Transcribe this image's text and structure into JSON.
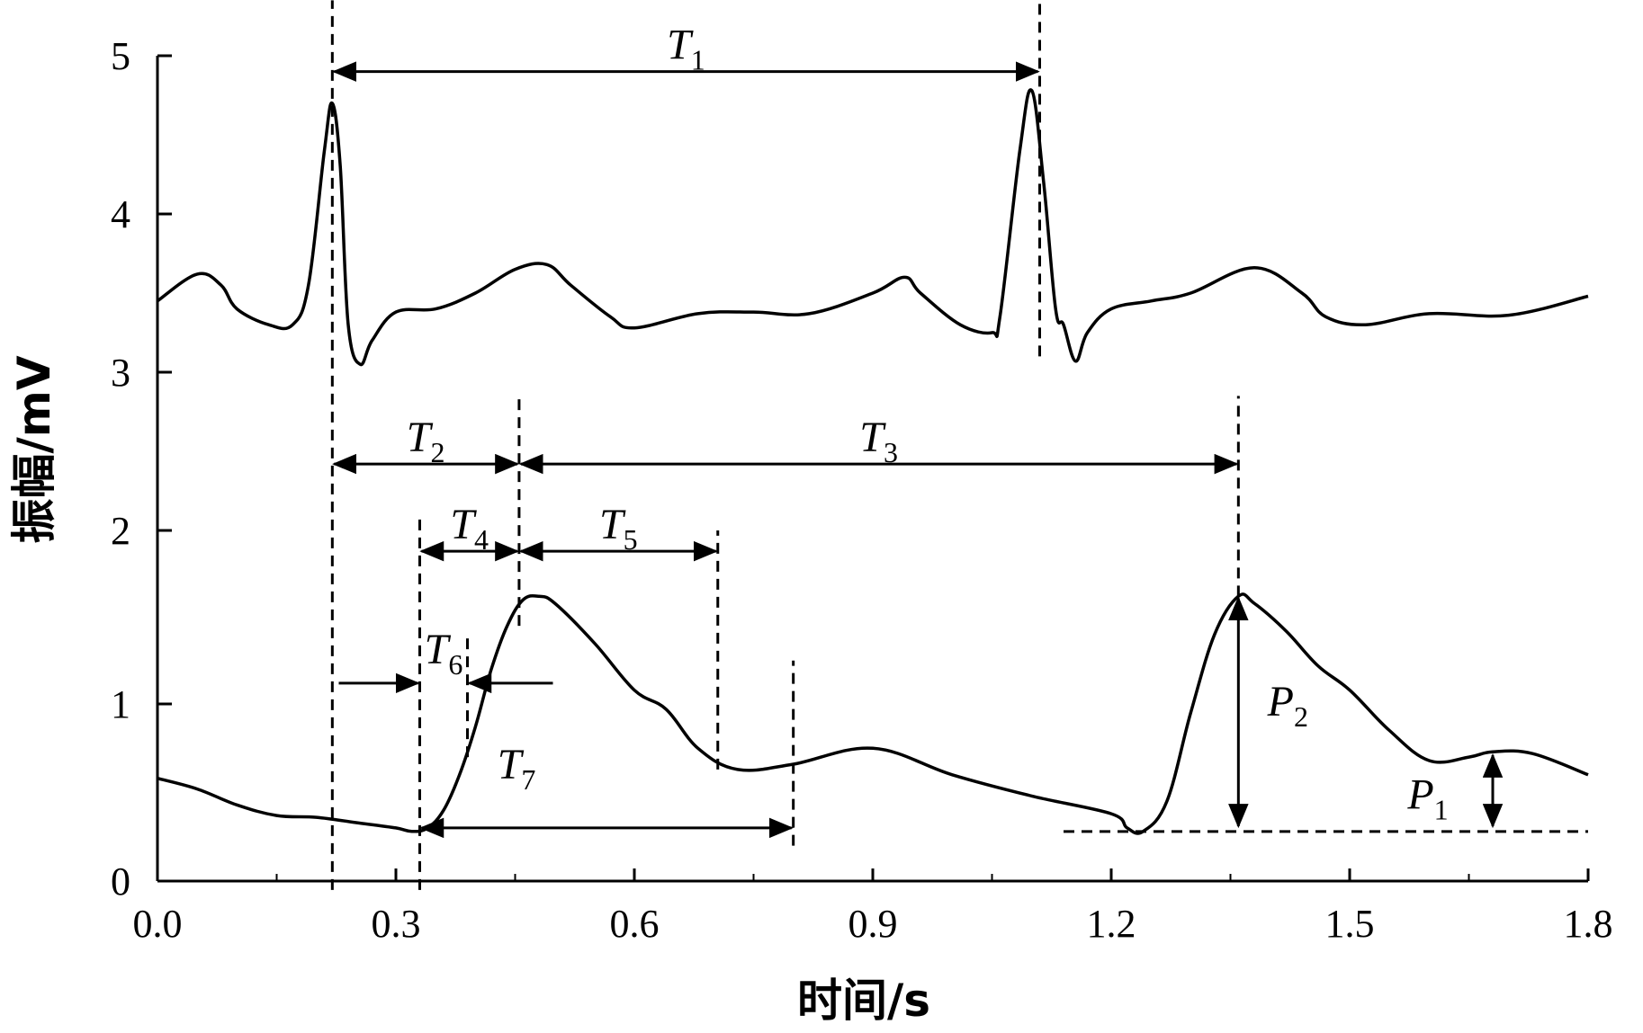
{
  "chart_data": {
    "type": "line",
    "xlabel": "时间/s",
    "ylabel": "振幅/mV",
    "xlim": [
      0,
      1.8
    ],
    "ylim": [
      0,
      5
    ],
    "x_ticks": [
      "0.0",
      "0.3",
      "0.6",
      "0.9",
      "1.2",
      "1.5",
      "1.8"
    ],
    "y_ticks": [
      "0",
      "1",
      "2",
      "3",
      "4",
      "5"
    ],
    "y_scale_note": "y-axis segment between 1 and 2 is drawn compressed",
    "grid": false,
    "series": [
      {
        "x": [
          0.0,
          0.05,
          0.08,
          0.1,
          0.14,
          0.17,
          0.19,
          0.21,
          0.22,
          0.23,
          0.24,
          0.255,
          0.27,
          0.3,
          0.35,
          0.4,
          0.45,
          0.49,
          0.52,
          0.57,
          0.6,
          0.68,
          0.75,
          0.82,
          0.9,
          0.94,
          0.96,
          1.01,
          1.05,
          1.06,
          1.085,
          1.1,
          1.115,
          1.13,
          1.14,
          1.155,
          1.17,
          1.2,
          1.25,
          1.3,
          1.38,
          1.44,
          1.47,
          1.52,
          1.6,
          1.7,
          1.8
        ],
        "y": [
          3.45,
          3.62,
          3.55,
          3.4,
          3.3,
          3.3,
          3.55,
          4.4,
          4.7,
          4.3,
          3.3,
          3.05,
          3.2,
          3.38,
          3.4,
          3.5,
          3.65,
          3.68,
          3.55,
          3.35,
          3.28,
          3.37,
          3.38,
          3.37,
          3.5,
          3.6,
          3.5,
          3.3,
          3.25,
          3.35,
          4.4,
          4.78,
          4.2,
          3.4,
          3.3,
          3.07,
          3.25,
          3.4,
          3.45,
          3.5,
          3.66,
          3.5,
          3.35,
          3.3,
          3.37,
          3.36,
          3.48
        ]
      },
      {
        "x": [
          0.0,
          0.05,
          0.1,
          0.15,
          0.2,
          0.25,
          0.3,
          0.32,
          0.34,
          0.36,
          0.38,
          0.4,
          0.42,
          0.44,
          0.46,
          0.48,
          0.5,
          0.55,
          0.6,
          0.64,
          0.68,
          0.73,
          0.8,
          0.9,
          1.0,
          1.1,
          1.2,
          1.22,
          1.24,
          1.27,
          1.3,
          1.33,
          1.36,
          1.38,
          1.42,
          1.46,
          1.5,
          1.55,
          1.6,
          1.65,
          1.68,
          1.73,
          1.8
        ],
        "y": [
          0.58,
          0.52,
          0.43,
          0.37,
          0.36,
          0.33,
          0.3,
          0.28,
          0.3,
          0.4,
          0.6,
          0.87,
          1.2,
          1.45,
          1.6,
          1.62,
          1.58,
          1.35,
          1.08,
          0.97,
          0.75,
          0.63,
          0.66,
          0.75,
          0.6,
          0.48,
          0.38,
          0.3,
          0.28,
          0.45,
          0.95,
          1.4,
          1.62,
          1.58,
          1.42,
          1.22,
          1.08,
          0.85,
          0.68,
          0.7,
          0.73,
          0.72,
          0.6
        ]
      }
    ],
    "annotations": [
      {
        "label": "T",
        "sub": "1",
        "kind": "h-arrow",
        "x1": 0.22,
        "x2": 1.11,
        "y": 4.9
      },
      {
        "label": "T",
        "sub": "2",
        "kind": "h-arrow",
        "x1": 0.22,
        "x2": 0.455,
        "y": 2.42
      },
      {
        "label": "T",
        "sub": "3",
        "kind": "h-arrow",
        "x1": 0.455,
        "x2": 1.36,
        "y": 2.42
      },
      {
        "label": "T",
        "sub": "4",
        "kind": "h-arrow",
        "x1": 0.33,
        "x2": 0.455,
        "y": 1.88
      },
      {
        "label": "T",
        "sub": "5",
        "kind": "h-arrow",
        "x1": 0.455,
        "x2": 0.705,
        "y": 1.88
      },
      {
        "label": "T",
        "sub": "6",
        "kind": "h-inward-arrows",
        "x1": 0.33,
        "x2": 0.39,
        "y": 1.12
      },
      {
        "label": "T",
        "sub": "7",
        "kind": "h-arrow",
        "x1": 0.33,
        "x2": 0.8,
        "y": 0.3
      },
      {
        "label": "P",
        "sub": "1",
        "kind": "v-arrow",
        "x": 1.68,
        "y1": 0.3,
        "y2": 0.72
      },
      {
        "label": "P",
        "sub": "2",
        "kind": "v-arrow",
        "x": 1.36,
        "y1": 0.3,
        "y2": 1.62
      }
    ],
    "reference_lines": [
      {
        "kind": "vline",
        "x": 0.22,
        "y1": -0.05,
        "y2": 5.35
      },
      {
        "kind": "vline",
        "x": 1.11,
        "y1": 3.1,
        "y2": 5.35
      },
      {
        "kind": "vline",
        "x": 0.455,
        "y1": 1.45,
        "y2": 2.85
      },
      {
        "kind": "vline",
        "x": 1.36,
        "y1": 1.62,
        "y2": 2.85
      },
      {
        "kind": "vline",
        "x": 0.33,
        "y1": -0.05,
        "y2": 2.07
      },
      {
        "kind": "vline",
        "x": 0.705,
        "y1": 0.63,
        "y2": 2.0
      },
      {
        "kind": "vline",
        "x": 0.39,
        "y1": 0.7,
        "y2": 1.4
      },
      {
        "kind": "vline",
        "x": 0.8,
        "y1": 0.2,
        "y2": 1.25
      },
      {
        "kind": "hline",
        "x1": 1.14,
        "x2": 1.8,
        "y": 0.28
      }
    ]
  }
}
